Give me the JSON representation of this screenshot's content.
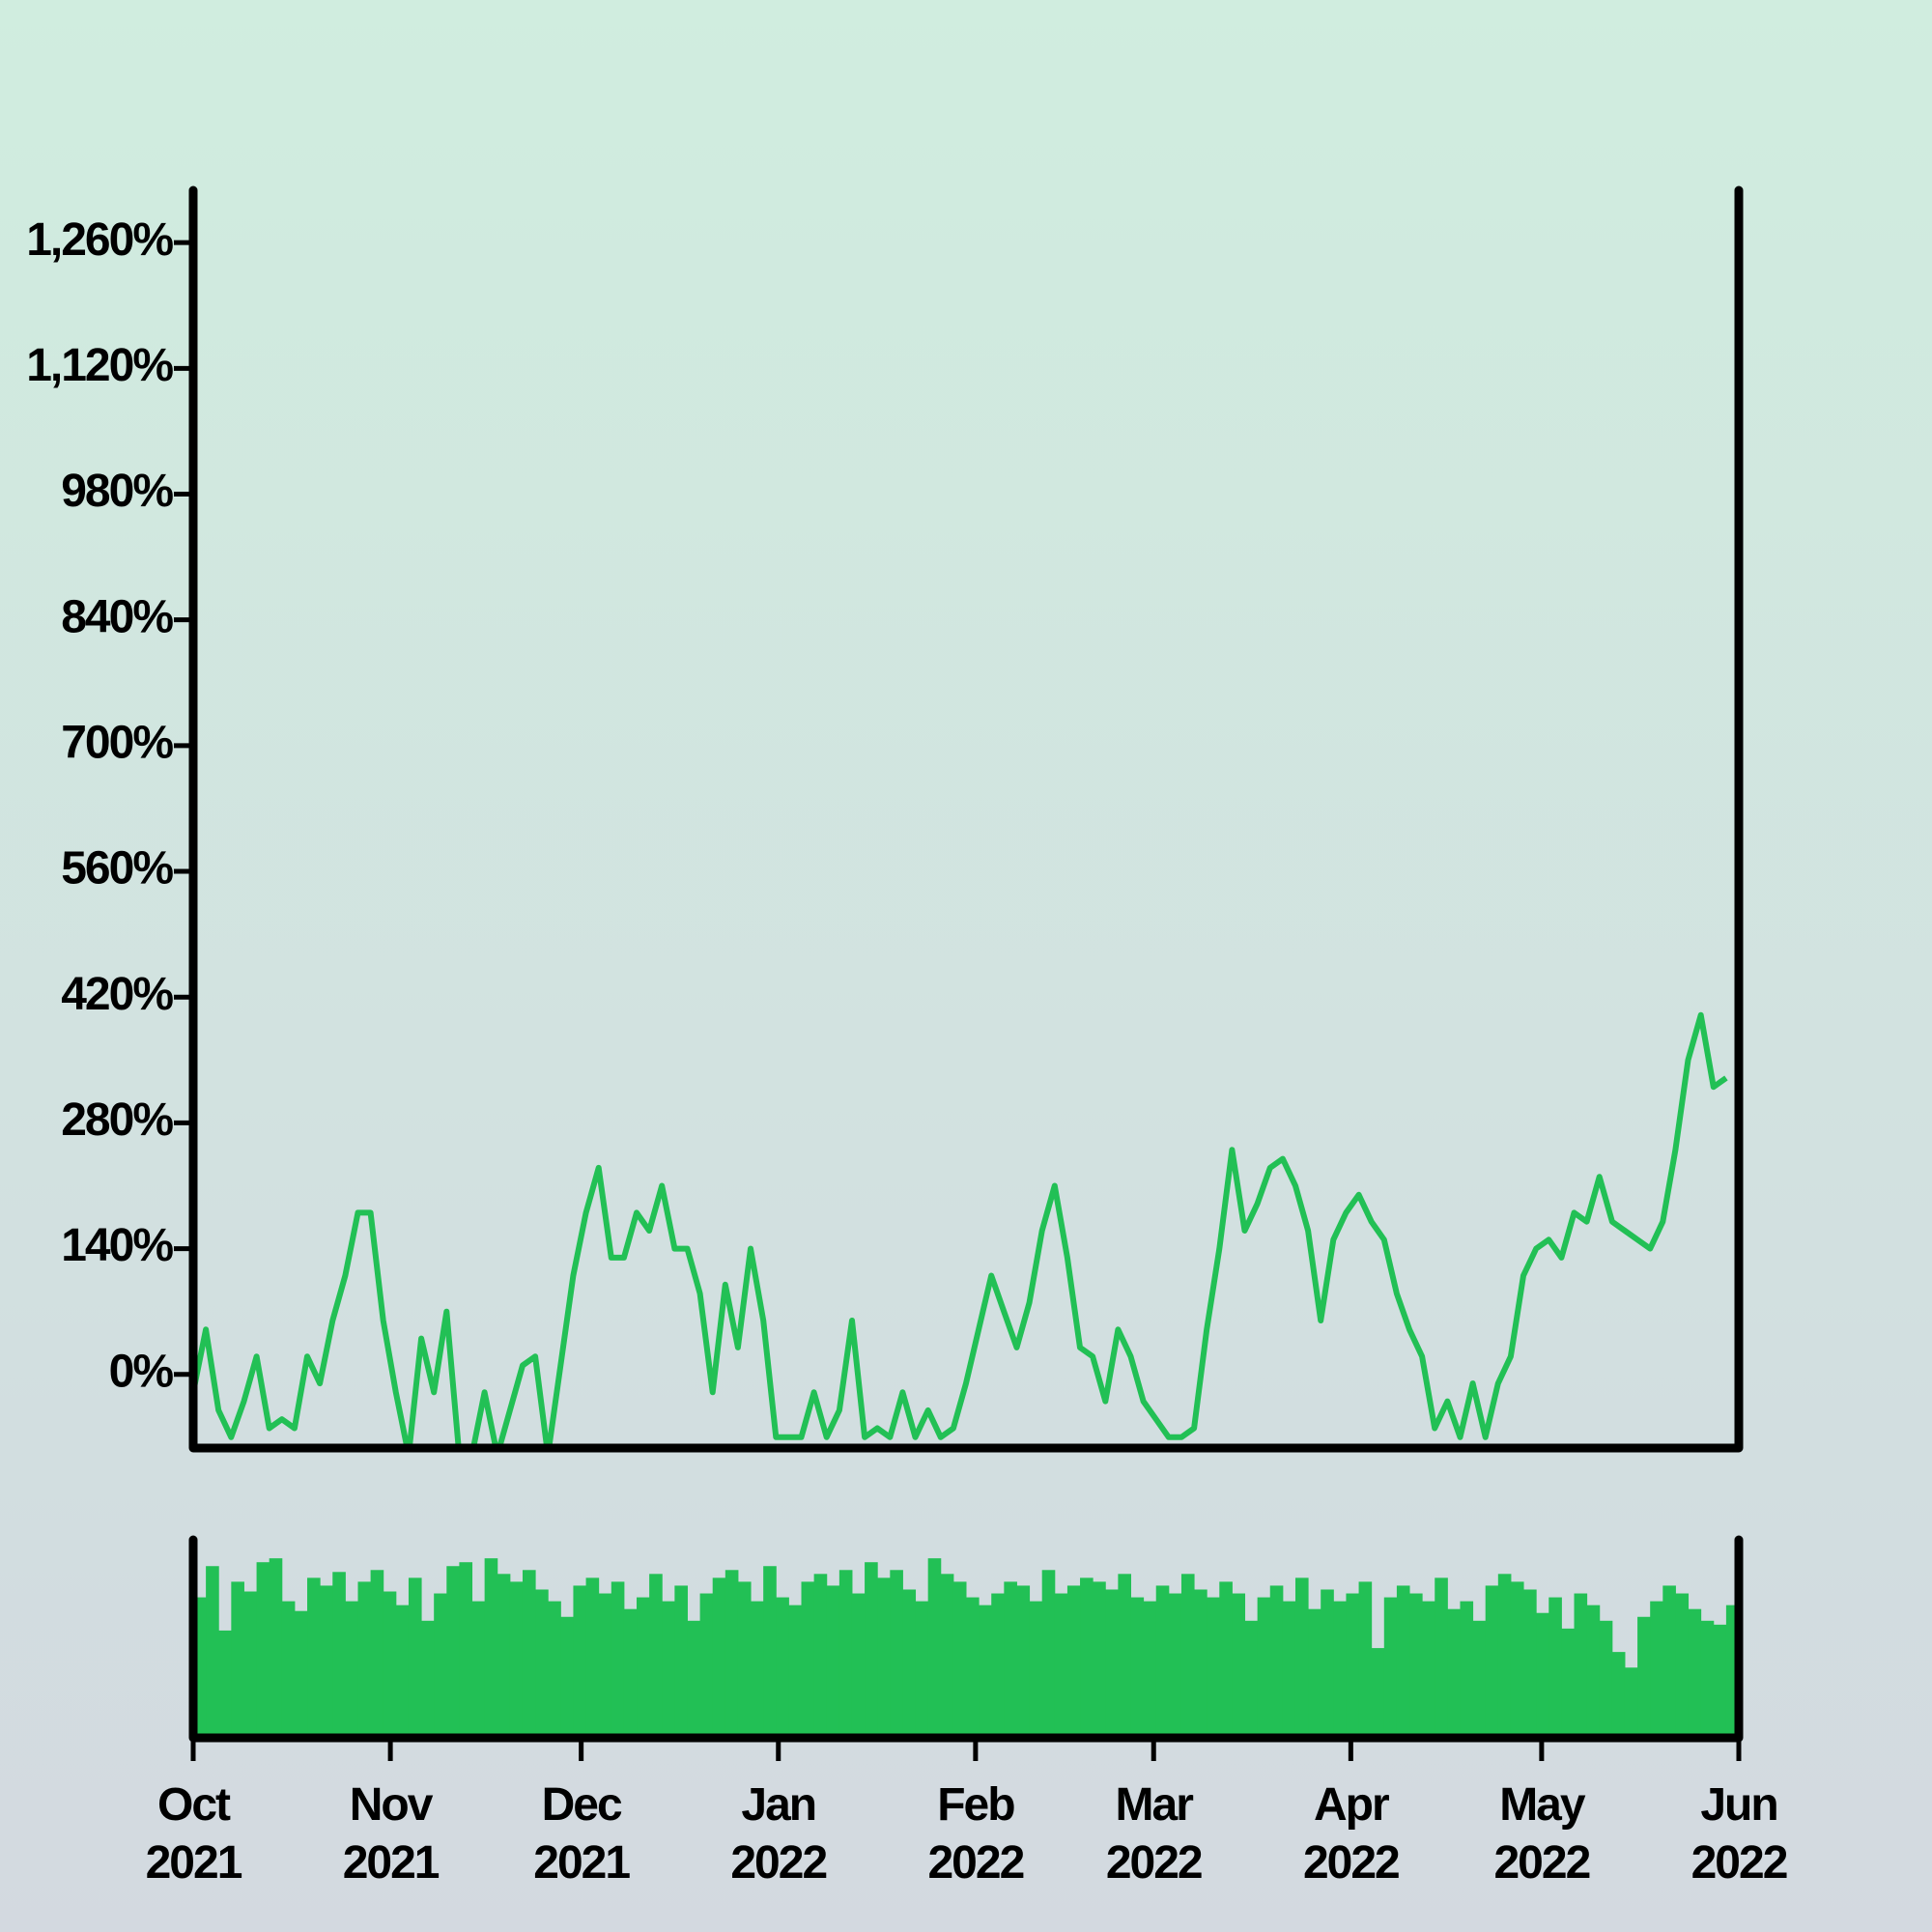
{
  "chart_data": [
    {
      "type": "line",
      "color": "#22c055",
      "xlim": [
        "2021-10",
        "2022-06"
      ],
      "ylim": [
        -82,
        1315
      ],
      "yticks": [
        {
          "value": 0,
          "label": "0%"
        },
        {
          "value": 140,
          "label": "140%"
        },
        {
          "value": 280,
          "label": "280%"
        },
        {
          "value": 420,
          "label": "420%"
        },
        {
          "value": 560,
          "label": "560%"
        },
        {
          "value": 700,
          "label": "700%"
        },
        {
          "value": 840,
          "label": "840%"
        },
        {
          "value": 980,
          "label": "980%"
        },
        {
          "value": 1120,
          "label": "1,120%"
        },
        {
          "value": 1260,
          "label": "1,260%"
        }
      ],
      "values": [
        -20,
        50,
        -40,
        -70,
        -30,
        20,
        -60,
        -50,
        -60,
        20,
        -10,
        60,
        110,
        180,
        180,
        60,
        -20,
        -90,
        40,
        -20,
        70,
        -90,
        -90,
        -20,
        -90,
        -40,
        10,
        20,
        -90,
        10,
        110,
        180,
        230,
        130,
        130,
        180,
        160,
        210,
        140,
        140,
        90,
        -20,
        100,
        30,
        140,
        60,
        -70,
        -70,
        -70,
        -20,
        -70,
        -40,
        60,
        -70,
        -60,
        -70,
        -20,
        -70,
        -40,
        -70,
        -60,
        -10,
        50,
        110,
        70,
        30,
        80,
        160,
        210,
        130,
        30,
        20,
        -30,
        50,
        20,
        -30,
        -50,
        -70,
        -70,
        -60,
        50,
        140,
        250,
        160,
        190,
        230,
        240,
        210,
        160,
        60,
        150,
        180,
        200,
        170,
        150,
        90,
        50,
        20,
        -60,
        -30,
        -70,
        -10,
        -70,
        -10,
        20,
        110,
        140,
        150,
        130,
        180,
        170,
        220,
        170,
        160,
        150,
        140,
        170,
        250,
        350,
        400,
        320,
        330
      ]
    },
    {
      "type": "bar",
      "color": "#22c055",
      "xlim": [
        "2021-10",
        "2022-06"
      ],
      "ylim": [
        0,
        100
      ],
      "xticks": [
        {
          "value": "2021-10",
          "label": "Oct\n2021"
        },
        {
          "value": "2021-11",
          "label": "Nov\n2021"
        },
        {
          "value": "2021-12",
          "label": "Dec\n2021"
        },
        {
          "value": "2022-01",
          "label": "Jan\n2022"
        },
        {
          "value": "2022-02",
          "label": "Feb\n2022"
        },
        {
          "value": "2022-03",
          "label": "Mar\n2022"
        },
        {
          "value": "2022-04",
          "label": "Apr\n2022"
        },
        {
          "value": "2022-05",
          "label": "May\n2022"
        },
        {
          "value": "2022-06",
          "label": "Jun\n2022"
        }
      ],
      "values": [
        72,
        88,
        55,
        80,
        75,
        90,
        92,
        70,
        65,
        82,
        78,
        85,
        70,
        80,
        86,
        75,
        68,
        82,
        60,
        74,
        88,
        90,
        70,
        92,
        84,
        80,
        86,
        76,
        70,
        62,
        78,
        82,
        74,
        80,
        66,
        72,
        84,
        70,
        78,
        60,
        74,
        82,
        86,
        80,
        70,
        88,
        72,
        68,
        80,
        84,
        78,
        86,
        74,
        90,
        82,
        86,
        76,
        70,
        92,
        84,
        80,
        72,
        68,
        74,
        80,
        78,
        70,
        86,
        74,
        78,
        82,
        80,
        76,
        84,
        72,
        70,
        78,
        74,
        84,
        76,
        72,
        80,
        74,
        60,
        72,
        78,
        70,
        82,
        66,
        76,
        70,
        74,
        80,
        46,
        72,
        78,
        74,
        70,
        82,
        66,
        70,
        60,
        78,
        84,
        80,
        76,
        64,
        72,
        56,
        74,
        68,
        60,
        44,
        36,
        62,
        70,
        78,
        74,
        66,
        60,
        58,
        68
      ]
    }
  ]
}
